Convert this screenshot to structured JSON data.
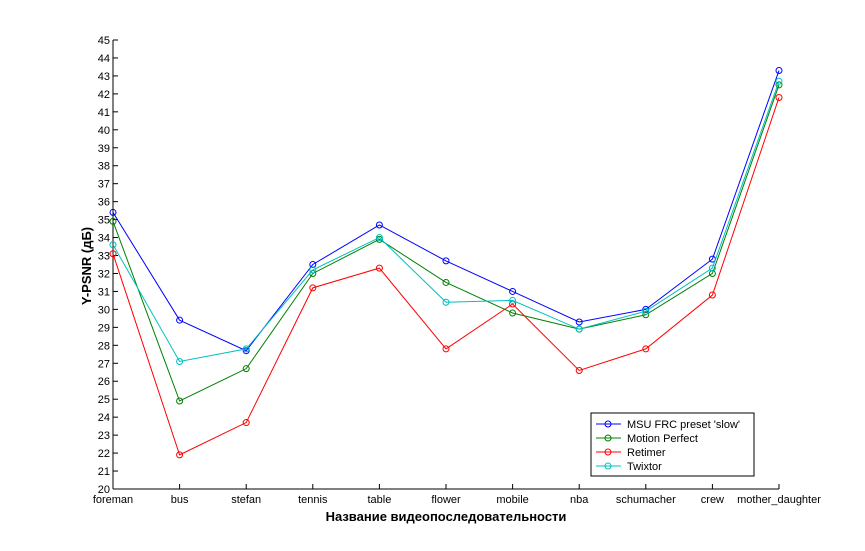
{
  "chart_data": {
    "type": "line",
    "title": "",
    "xlabel": "Название видеопоследовательности",
    "ylabel": "Y-PSNR (дБ)",
    "ylim": [
      20,
      45
    ],
    "yticks": [
      "20",
      "21",
      "22",
      "23",
      "24",
      "25",
      "26",
      "27",
      "28",
      "29",
      "30",
      "31",
      "32",
      "33",
      "34",
      "35",
      "36",
      "37",
      "38",
      "39",
      "40",
      "41",
      "42",
      "43",
      "44",
      "45"
    ],
    "categories": [
      "foreman",
      "bus",
      "stefan",
      "tennis",
      "table",
      "flower",
      "mobile",
      "nba",
      "schumacher",
      "crew",
      "mother_daughter"
    ],
    "grid": false,
    "legend_position": "bottom-right",
    "series": [
      {
        "name": "MSU FRC preset 'slow'",
        "color": "#0000ff",
        "values": [
          35.4,
          29.4,
          27.7,
          32.5,
          34.7,
          32.7,
          31.0,
          29.3,
          30.0,
          32.8,
          43.3
        ]
      },
      {
        "name": "Motion Perfect",
        "color": "#008000",
        "values": [
          34.9,
          24.9,
          26.7,
          32.0,
          33.9,
          31.5,
          29.8,
          28.9,
          29.7,
          32.0,
          42.5
        ]
      },
      {
        "name": "Retimer",
        "color": "#ff0000",
        "values": [
          33.1,
          21.9,
          23.7,
          31.2,
          32.3,
          27.8,
          30.3,
          26.6,
          27.8,
          30.8,
          41.8
        ]
      },
      {
        "name": "Twixtor",
        "color": "#00bfbf",
        "values": [
          33.6,
          27.1,
          27.8,
          32.2,
          34.0,
          30.4,
          30.5,
          28.9,
          29.9,
          32.3,
          42.7
        ]
      }
    ]
  }
}
